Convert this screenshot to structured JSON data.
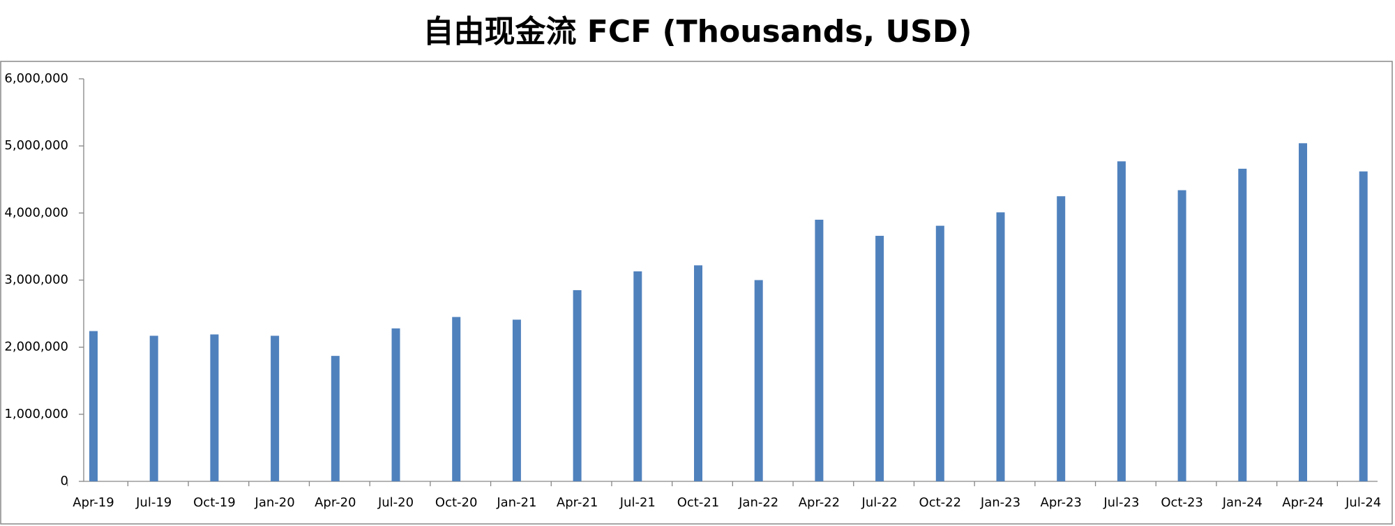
{
  "chart_data": {
    "type": "bar",
    "title": "自由现金流 FCF (Thousands, USD)",
    "categories": [
      "Apr-19",
      "Jul-19",
      "Oct-19",
      "Jan-20",
      "Apr-20",
      "Jul-20",
      "Oct-20",
      "Jan-21",
      "Apr-21",
      "Jul-21",
      "Oct-21",
      "Jan-22",
      "Apr-22",
      "Jul-22",
      "Oct-22",
      "Jan-23",
      "Apr-23",
      "Jul-23",
      "Oct-23",
      "Jan-24",
      "Apr-24",
      "Jul-24"
    ],
    "values": [
      2240000,
      2170000,
      2190000,
      2170000,
      1870000,
      2280000,
      2450000,
      2410000,
      2850000,
      3130000,
      3220000,
      3000000,
      3900000,
      3660000,
      3810000,
      4010000,
      4250000,
      4770000,
      4340000,
      4660000,
      5040000,
      4620000
    ],
    "color": "#4f81bd",
    "ylim": [
      0,
      6000000
    ],
    "yticks": [
      0,
      {
        "value": 1000000,
        "label": "1,000,000"
      },
      {
        "value": 2000000,
        "label": "2,000,000"
      },
      {
        "value": 3000000,
        "label": "3,000,000"
      },
      {
        "value": 4000000,
        "label": "4,000,000"
      },
      {
        "value": 5000000,
        "label": "5,000,000"
      },
      {
        "value": 6000000,
        "label": "6,000,000"
      }
    ],
    "grid": false
  }
}
